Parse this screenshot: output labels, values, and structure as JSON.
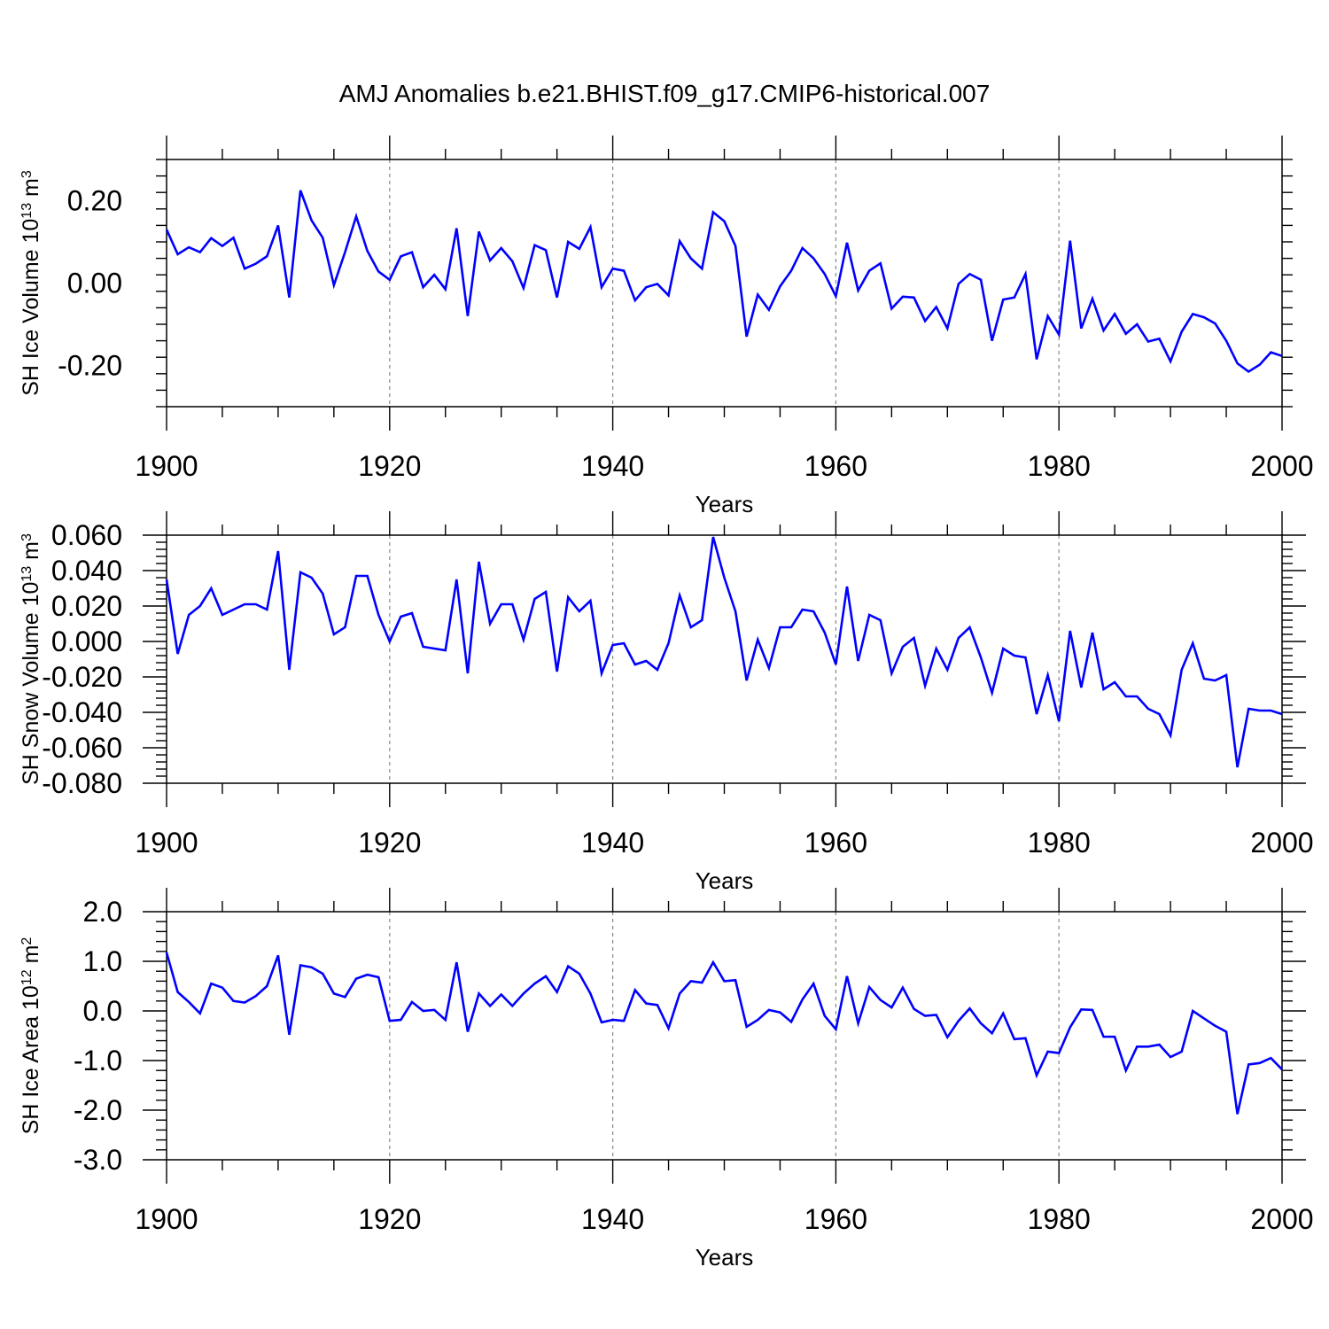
{
  "figure": {
    "title": "AMJ Anomalies b.e21.BHIST.f09_g17.CMIP6-historical.007"
  },
  "chart_data": [
    {
      "type": "line",
      "title": "",
      "xlabel": "Years",
      "ylabel_main": "SH Ice Volume 10",
      "ylabel_exp": "13",
      "ylabel_unit": " m",
      "ylabel_unit_exp": "3",
      "xlim": [
        1900,
        2000
      ],
      "ylim": [
        -0.3,
        0.3
      ],
      "xticks": [
        1900,
        1920,
        1940,
        1960,
        1980,
        2000
      ],
      "xtick_labels": [
        "1900",
        "1920",
        "1940",
        "1960",
        "1980",
        "2000"
      ],
      "yticks": [
        -0.2,
        0.0,
        0.2
      ],
      "ytick_labels": [
        "-0.20",
        "0.00",
        "0.20"
      ],
      "grid_x": [
        1920,
        1940,
        1960,
        1980
      ],
      "series": [
        {
          "name": "SH Ice Volume",
          "color": "#0000ff",
          "x": [
            1900,
            1901,
            1902,
            1903,
            1904,
            1905,
            1906,
            1907,
            1908,
            1909,
            1910,
            1911,
            1912,
            1913,
            1914,
            1915,
            1916,
            1917,
            1918,
            1919,
            1920,
            1921,
            1922,
            1923,
            1924,
            1925,
            1926,
            1927,
            1928,
            1929,
            1930,
            1931,
            1932,
            1933,
            1934,
            1935,
            1936,
            1937,
            1938,
            1939,
            1940,
            1941,
            1942,
            1943,
            1944,
            1945,
            1946,
            1947,
            1948,
            1949,
            1950,
            1951,
            1952,
            1953,
            1954,
            1955,
            1956,
            1957,
            1958,
            1959,
            1960,
            1961,
            1962,
            1963,
            1964,
            1965,
            1966,
            1967,
            1968,
            1969,
            1970,
            1971,
            1972,
            1973,
            1974,
            1975,
            1976,
            1977,
            1978,
            1979,
            1980,
            1981,
            1982,
            1983,
            1984,
            1985,
            1986,
            1987,
            1988,
            1989,
            1990,
            1991,
            1992,
            1993,
            1994,
            1995,
            1996,
            1997,
            1998,
            1999,
            2000
          ],
          "values": [
            0.13,
            0.07,
            0.087,
            0.075,
            0.109,
            0.09,
            0.11,
            0.035,
            0.047,
            0.065,
            0.14,
            -0.035,
            0.225,
            0.152,
            0.11,
            -0.005,
            0.075,
            0.162,
            0.078,
            0.028,
            0.008,
            0.065,
            0.075,
            -0.01,
            0.02,
            -0.015,
            0.133,
            -0.08,
            0.125,
            0.055,
            0.085,
            0.053,
            -0.012,
            0.092,
            0.08,
            -0.035,
            0.1,
            0.083,
            0.136,
            -0.01,
            0.035,
            0.03,
            -0.042,
            -0.01,
            -0.002,
            -0.03,
            0.102,
            0.06,
            0.035,
            0.172,
            0.15,
            0.09,
            -0.13,
            -0.028,
            -0.065,
            -0.008,
            0.03,
            0.085,
            0.06,
            0.022,
            -0.032,
            0.098,
            -0.018,
            0.03,
            0.048,
            -0.062,
            -0.033,
            -0.035,
            -0.092,
            -0.058,
            -0.11,
            -0.002,
            0.022,
            0.008,
            -0.14,
            -0.04,
            -0.035,
            0.022,
            -0.185,
            -0.08,
            -0.125,
            0.103,
            -0.11,
            -0.038,
            -0.115,
            -0.075,
            -0.123,
            -0.1,
            -0.142,
            -0.135,
            -0.19,
            -0.118,
            -0.075,
            -0.083,
            -0.098,
            -0.14,
            -0.195,
            -0.215,
            -0.198,
            -0.168,
            -0.177
          ]
        }
      ]
    },
    {
      "type": "line",
      "title": "",
      "xlabel": "Years",
      "ylabel_main": "SH Snow Volume 10",
      "ylabel_exp": "13",
      "ylabel_unit": " m",
      "ylabel_unit_exp": "3",
      "xlim": [
        1900,
        2000
      ],
      "ylim": [
        -0.08,
        0.06
      ],
      "xticks": [
        1900,
        1920,
        1940,
        1960,
        1980,
        2000
      ],
      "xtick_labels": [
        "1900",
        "1920",
        "1940",
        "1960",
        "1980",
        "2000"
      ],
      "yticks": [
        -0.08,
        -0.06,
        -0.04,
        -0.02,
        0.0,
        0.02,
        0.04,
        0.06
      ],
      "ytick_labels": [
        "-0.080",
        "-0.060",
        "-0.040",
        "-0.020",
        "0.000",
        "0.020",
        "0.040",
        "0.060"
      ],
      "grid_x": [
        1920,
        1940,
        1960,
        1980
      ],
      "series": [
        {
          "name": "SH Snow Volume",
          "color": "#0000ff",
          "x": [
            1900,
            1901,
            1902,
            1903,
            1904,
            1905,
            1906,
            1907,
            1908,
            1909,
            1910,
            1911,
            1912,
            1913,
            1914,
            1915,
            1916,
            1917,
            1918,
            1919,
            1920,
            1921,
            1922,
            1923,
            1924,
            1925,
            1926,
            1927,
            1928,
            1929,
            1930,
            1931,
            1932,
            1933,
            1934,
            1935,
            1936,
            1937,
            1938,
            1939,
            1940,
            1941,
            1942,
            1943,
            1944,
            1945,
            1946,
            1947,
            1948,
            1949,
            1950,
            1951,
            1952,
            1953,
            1954,
            1955,
            1956,
            1957,
            1958,
            1959,
            1960,
            1961,
            1962,
            1963,
            1964,
            1965,
            1966,
            1967,
            1968,
            1969,
            1970,
            1971,
            1972,
            1973,
            1974,
            1975,
            1976,
            1977,
            1978,
            1979,
            1980,
            1981,
            1982,
            1983,
            1984,
            1985,
            1986,
            1987,
            1988,
            1989,
            1990,
            1991,
            1992,
            1993,
            1994,
            1995,
            1996,
            1997,
            1998,
            1999,
            2000
          ],
          "values": [
            0.035,
            -0.007,
            0.015,
            0.02,
            0.03,
            0.015,
            0.018,
            0.021,
            0.021,
            0.018,
            0.051,
            -0.016,
            0.039,
            0.036,
            0.027,
            0.004,
            0.008,
            0.037,
            0.037,
            0.015,
            0.0,
            0.014,
            0.016,
            -0.003,
            -0.004,
            -0.005,
            0.035,
            -0.018,
            0.045,
            0.01,
            0.021,
            0.021,
            0.001,
            0.024,
            0.028,
            -0.017,
            0.025,
            0.017,
            0.023,
            -0.018,
            -0.002,
            -0.001,
            -0.013,
            -0.011,
            -0.016,
            -0.001,
            0.026,
            0.008,
            0.012,
            0.059,
            0.036,
            0.017,
            -0.022,
            0.001,
            -0.015,
            0.008,
            0.008,
            0.018,
            0.017,
            0.005,
            -0.013,
            0.031,
            -0.011,
            0.015,
            0.012,
            -0.018,
            -0.003,
            0.002,
            -0.025,
            -0.004,
            -0.016,
            0.002,
            0.008,
            -0.009,
            -0.029,
            -0.004,
            -0.008,
            -0.009,
            -0.041,
            -0.019,
            -0.045,
            0.006,
            -0.026,
            0.005,
            -0.027,
            -0.023,
            -0.031,
            -0.031,
            -0.038,
            -0.041,
            -0.053,
            -0.016,
            -0.001,
            -0.021,
            -0.022,
            -0.019,
            -0.071,
            -0.038,
            -0.039,
            -0.039,
            -0.041
          ]
        }
      ]
    },
    {
      "type": "line",
      "title": "",
      "xlabel": "Years",
      "ylabel_main": "SH Ice Area 10",
      "ylabel_exp": "12",
      "ylabel_unit": " m",
      "ylabel_unit_exp": "2",
      "xlim": [
        1900,
        2000
      ],
      "ylim": [
        -3.0,
        2.0
      ],
      "xticks": [
        1900,
        1920,
        1940,
        1960,
        1980,
        2000
      ],
      "xtick_labels": [
        "1900",
        "1920",
        "1940",
        "1960",
        "1980",
        "2000"
      ],
      "yticks": [
        -3.0,
        -2.0,
        -1.0,
        0.0,
        1.0,
        2.0
      ],
      "ytick_labels": [
        "-3.0",
        "-2.0",
        "-1.0",
        "0.0",
        "1.0",
        "2.0"
      ],
      "grid_x": [
        1920,
        1940,
        1960,
        1980
      ],
      "series": [
        {
          "name": "SH Ice Area",
          "color": "#0000ff",
          "x": [
            1900,
            1901,
            1902,
            1903,
            1904,
            1905,
            1906,
            1907,
            1908,
            1909,
            1910,
            1911,
            1912,
            1913,
            1914,
            1915,
            1916,
            1917,
            1918,
            1919,
            1920,
            1921,
            1922,
            1923,
            1924,
            1925,
            1926,
            1927,
            1928,
            1929,
            1930,
            1931,
            1932,
            1933,
            1934,
            1935,
            1936,
            1937,
            1938,
            1939,
            1940,
            1941,
            1942,
            1943,
            1944,
            1945,
            1946,
            1947,
            1948,
            1949,
            1950,
            1951,
            1952,
            1953,
            1954,
            1955,
            1956,
            1957,
            1958,
            1959,
            1960,
            1961,
            1962,
            1963,
            1964,
            1965,
            1966,
            1967,
            1968,
            1969,
            1970,
            1971,
            1972,
            1973,
            1974,
            1975,
            1976,
            1977,
            1978,
            1979,
            1980,
            1981,
            1982,
            1983,
            1984,
            1985,
            1986,
            1987,
            1988,
            1989,
            1990,
            1991,
            1992,
            1993,
            1994,
            1995,
            1996,
            1997,
            1998,
            1999,
            2000
          ],
          "values": [
            1.18,
            0.38,
            0.18,
            -0.05,
            0.55,
            0.47,
            0.2,
            0.17,
            0.3,
            0.5,
            1.12,
            -0.48,
            0.92,
            0.88,
            0.75,
            0.35,
            0.28,
            0.65,
            0.73,
            0.68,
            -0.2,
            -0.18,
            0.18,
            0.0,
            0.02,
            -0.18,
            0.98,
            -0.42,
            0.35,
            0.1,
            0.33,
            0.1,
            0.35,
            0.55,
            0.7,
            0.38,
            0.9,
            0.75,
            0.35,
            -0.23,
            -0.18,
            -0.2,
            0.42,
            0.15,
            0.12,
            -0.35,
            0.35,
            0.6,
            0.57,
            0.98,
            0.6,
            0.62,
            -0.32,
            -0.18,
            0.02,
            -0.03,
            -0.22,
            0.23,
            0.55,
            -0.1,
            -0.37,
            0.7,
            -0.25,
            0.48,
            0.22,
            0.07,
            0.47,
            0.04,
            -0.1,
            -0.08,
            -0.53,
            -0.2,
            0.05,
            -0.25,
            -0.45,
            -0.05,
            -0.57,
            -0.55,
            -1.3,
            -0.82,
            -0.85,
            -0.33,
            0.03,
            0.02,
            -0.52,
            -0.52,
            -1.2,
            -0.72,
            -0.72,
            -0.68,
            -0.93,
            -0.82,
            0.0,
            -0.15,
            -0.3,
            -0.42,
            -2.08,
            -1.08,
            -1.05,
            -0.95,
            -1.18
          ]
        }
      ]
    }
  ]
}
